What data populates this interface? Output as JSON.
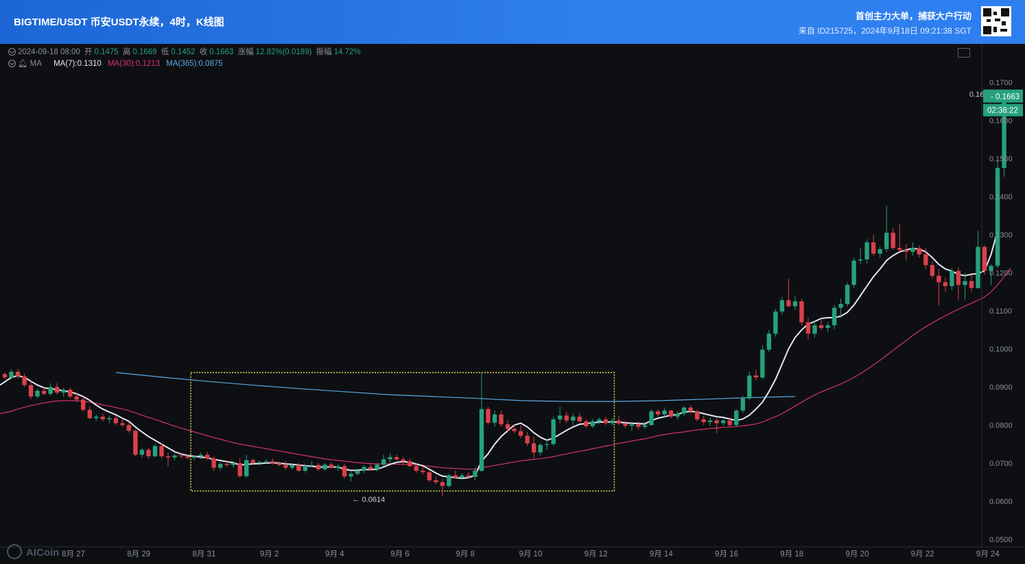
{
  "header": {
    "title": "BIGTIME/USDT 币安USDT永续，4时，K线图",
    "slogan": "首创主力大单，捕获大户行动",
    "source": "来自 ID215725，2024年9月18日 09:21:38 SGT"
  },
  "ohlc_info": {
    "date": "2024-09-18 08:00",
    "open_label": "开",
    "open": "0.1475",
    "high_label": "高",
    "high": "0.1669",
    "low_label": "低",
    "low": "0.1452",
    "close_label": "收",
    "close": "0.1663",
    "change_label": "涨幅",
    "change": "12.82%(0.0189)",
    "amp_label": "振幅",
    "amp": "14.72%"
  },
  "ma_info": {
    "label": "MA",
    "ma7": "MA(7):0.1310",
    "ma30": "MA(30):0.1213",
    "ma365": "MA(365):0.0875"
  },
  "price_tag": {
    "price": "0.1663",
    "countdown": "02:38:22"
  },
  "annotations": {
    "high": "0.1669 →",
    "low": "← 0.0614"
  },
  "logo": {
    "text": "AICoin"
  },
  "colors": {
    "up": "#26a17b",
    "down": "#d9414c",
    "ma7": "#e6e6f5",
    "ma30": "#d6336c",
    "ma365": "#5aa9e6",
    "box": "#e0d05a",
    "header": "#2f80ed"
  },
  "chart_data": {
    "type": "candlestick",
    "symbol": "BIGTIME/USDT",
    "interval": "4h",
    "y_ticks": [
      "0.1700",
      "0.1600",
      "0.1500",
      "0.1400",
      "0.1300",
      "0.1200",
      "0.1100",
      "0.1000",
      "0.0900",
      "0.0800",
      "0.0700",
      "0.0600",
      "0.0500"
    ],
    "ylim": [
      0.05,
      0.17
    ],
    "x_ticks": [
      "8月 27",
      "8月 29",
      "8月 31",
      "9月 2",
      "9月 4",
      "9月 6",
      "9月 8",
      "9月 10",
      "9月 12",
      "9月 14",
      "9月 16",
      "9月 18",
      "9月 20",
      "9月 22",
      "9月 24"
    ],
    "highlight_box": {
      "x_from_candle": 29,
      "x_to_candle": 93,
      "y_from": 0.0627,
      "y_to": 0.0938
    },
    "candles": [
      [
        0.0934,
        0.0938,
        0.0921,
        0.0925
      ],
      [
        0.0925,
        0.0945,
        0.092,
        0.094
      ],
      [
        0.094,
        0.0947,
        0.0922,
        0.0928
      ],
      [
        0.0928,
        0.0935,
        0.09,
        0.0905
      ],
      [
        0.0905,
        0.0915,
        0.0868,
        0.0875
      ],
      [
        0.0875,
        0.0895,
        0.087,
        0.089
      ],
      [
        0.089,
        0.09,
        0.0878,
        0.0882
      ],
      [
        0.0882,
        0.091,
        0.0878,
        0.09
      ],
      [
        0.09,
        0.091,
        0.088,
        0.0885
      ],
      [
        0.0885,
        0.0898,
        0.0875,
        0.0893
      ],
      [
        0.0893,
        0.09,
        0.087,
        0.0875
      ],
      [
        0.0875,
        0.0885,
        0.086,
        0.0867
      ],
      [
        0.0867,
        0.0875,
        0.0835,
        0.084
      ],
      [
        0.084,
        0.085,
        0.0815,
        0.0818
      ],
      [
        0.0818,
        0.0828,
        0.081,
        0.0822
      ],
      [
        0.0822,
        0.083,
        0.081,
        0.0815
      ],
      [
        0.0815,
        0.0825,
        0.0805,
        0.0818
      ],
      [
        0.0818,
        0.0825,
        0.08,
        0.0805
      ],
      [
        0.0805,
        0.0815,
        0.0795,
        0.08
      ],
      [
        0.08,
        0.0808,
        0.078,
        0.0785
      ],
      [
        0.0785,
        0.0788,
        0.0718,
        0.0722
      ],
      [
        0.0722,
        0.074,
        0.0715,
        0.0735
      ],
      [
        0.0735,
        0.074,
        0.0712,
        0.0718
      ],
      [
        0.0718,
        0.075,
        0.0715,
        0.0745
      ],
      [
        0.0745,
        0.0752,
        0.0712,
        0.0718
      ],
      [
        0.0718,
        0.0728,
        0.0692,
        0.0715
      ],
      [
        0.0715,
        0.0725,
        0.0708,
        0.072
      ],
      [
        0.072,
        0.0728,
        0.0712,
        0.0718
      ],
      [
        0.0718,
        0.0722,
        0.071,
        0.0714
      ],
      [
        0.0714,
        0.072,
        0.0708,
        0.0718
      ],
      [
        0.0718,
        0.0728,
        0.071,
        0.0722
      ],
      [
        0.0722,
        0.073,
        0.0708,
        0.0712
      ],
      [
        0.0712,
        0.0718,
        0.068,
        0.0688
      ],
      [
        0.0688,
        0.0702,
        0.0682,
        0.0698
      ],
      [
        0.0698,
        0.0708,
        0.069,
        0.0695
      ],
      [
        0.0695,
        0.0702,
        0.0688,
        0.07
      ],
      [
        0.07,
        0.0712,
        0.0662,
        0.0666
      ],
      [
        0.0666,
        0.0722,
        0.0662,
        0.0708
      ],
      [
        0.0708,
        0.0712,
        0.0696,
        0.07
      ],
      [
        0.07,
        0.0706,
        0.0694,
        0.0703
      ],
      [
        0.0703,
        0.071,
        0.0698,
        0.0705
      ],
      [
        0.0705,
        0.0712,
        0.0696,
        0.07
      ],
      [
        0.07,
        0.0705,
        0.0692,
        0.0695
      ],
      [
        0.0695,
        0.0705,
        0.0682,
        0.0688
      ],
      [
        0.0688,
        0.0698,
        0.0682,
        0.0695
      ],
      [
        0.0695,
        0.07,
        0.0678,
        0.068
      ],
      [
        0.068,
        0.0698,
        0.0675,
        0.0693
      ],
      [
        0.0693,
        0.0705,
        0.0688,
        0.0695
      ],
      [
        0.0695,
        0.07,
        0.068,
        0.0684
      ],
      [
        0.0684,
        0.07,
        0.068,
        0.0696
      ],
      [
        0.0696,
        0.0702,
        0.0685,
        0.0688
      ],
      [
        0.0688,
        0.0696,
        0.068,
        0.0692
      ],
      [
        0.0692,
        0.0698,
        0.066,
        0.0665
      ],
      [
        0.0665,
        0.068,
        0.0652,
        0.0672
      ],
      [
        0.0672,
        0.0686,
        0.0668,
        0.068
      ],
      [
        0.068,
        0.0694,
        0.0674,
        0.069
      ],
      [
        0.069,
        0.07,
        0.068,
        0.0684
      ],
      [
        0.0684,
        0.07,
        0.0678,
        0.0696
      ],
      [
        0.0696,
        0.0722,
        0.0692,
        0.071
      ],
      [
        0.071,
        0.0726,
        0.0698,
        0.0716
      ],
      [
        0.0716,
        0.0722,
        0.0706,
        0.071
      ],
      [
        0.071,
        0.0716,
        0.0695,
        0.0705
      ],
      [
        0.0705,
        0.0712,
        0.069,
        0.0692
      ],
      [
        0.0692,
        0.07,
        0.0675,
        0.068
      ],
      [
        0.068,
        0.069,
        0.067,
        0.0676
      ],
      [
        0.0676,
        0.0682,
        0.065,
        0.0655
      ],
      [
        0.0655,
        0.0665,
        0.0645,
        0.065
      ],
      [
        0.065,
        0.0658,
        0.0614,
        0.064
      ],
      [
        0.064,
        0.0672,
        0.0636,
        0.0668
      ],
      [
        0.0668,
        0.068,
        0.066,
        0.0662
      ],
      [
        0.0662,
        0.0674,
        0.0658,
        0.0668
      ],
      [
        0.0668,
        0.0676,
        0.066,
        0.0664
      ],
      [
        0.0664,
        0.0688,
        0.0655,
        0.068
      ],
      [
        0.068,
        0.0938,
        0.0676,
        0.0842
      ],
      [
        0.0842,
        0.0848,
        0.08,
        0.0806
      ],
      [
        0.0806,
        0.0838,
        0.0796,
        0.0828
      ],
      [
        0.0828,
        0.0838,
        0.0796,
        0.0802
      ],
      [
        0.0802,
        0.0812,
        0.078,
        0.079
      ],
      [
        0.079,
        0.0802,
        0.0778,
        0.0784
      ],
      [
        0.0784,
        0.08,
        0.0765,
        0.0772
      ],
      [
        0.0772,
        0.0782,
        0.0745,
        0.0752
      ],
      [
        0.0752,
        0.077,
        0.0712,
        0.0728
      ],
      [
        0.0728,
        0.0752,
        0.072,
        0.0748
      ],
      [
        0.0748,
        0.0765,
        0.0735,
        0.075
      ],
      [
        0.075,
        0.0822,
        0.0746,
        0.0815
      ],
      [
        0.0815,
        0.0848,
        0.0805,
        0.0825
      ],
      [
        0.0825,
        0.0835,
        0.0805,
        0.0812
      ],
      [
        0.0812,
        0.083,
        0.08,
        0.0822
      ],
      [
        0.0822,
        0.0832,
        0.0806,
        0.081
      ],
      [
        0.081,
        0.0816,
        0.0792,
        0.0797
      ],
      [
        0.0797,
        0.0816,
        0.0792,
        0.081
      ],
      [
        0.081,
        0.082,
        0.0803,
        0.0815
      ],
      [
        0.0815,
        0.0822,
        0.08,
        0.0805
      ],
      [
        0.0805,
        0.0818,
        0.0798,
        0.0812
      ],
      [
        0.0812,
        0.0825,
        0.08,
        0.0804
      ],
      [
        0.0804,
        0.0812,
        0.0792,
        0.0798
      ],
      [
        0.0798,
        0.0808,
        0.0785,
        0.0802
      ],
      [
        0.0802,
        0.081,
        0.0788,
        0.0795
      ],
      [
        0.0795,
        0.0808,
        0.079,
        0.08
      ],
      [
        0.08,
        0.0842,
        0.0798,
        0.0836
      ],
      [
        0.0836,
        0.0842,
        0.0822,
        0.0828
      ],
      [
        0.0828,
        0.0845,
        0.0818,
        0.0838
      ],
      [
        0.0838,
        0.084,
        0.0818,
        0.0822
      ],
      [
        0.0822,
        0.0836,
        0.0815,
        0.083
      ],
      [
        0.083,
        0.085,
        0.0824,
        0.0846
      ],
      [
        0.0846,
        0.0852,
        0.083,
        0.0836
      ],
      [
        0.0836,
        0.084,
        0.081,
        0.0815
      ],
      [
        0.0815,
        0.0825,
        0.08,
        0.0808
      ],
      [
        0.0808,
        0.082,
        0.0798,
        0.0812
      ],
      [
        0.0812,
        0.0818,
        0.0778,
        0.0805
      ],
      [
        0.0805,
        0.0816,
        0.0798,
        0.0812
      ],
      [
        0.0812,
        0.082,
        0.0795,
        0.08
      ],
      [
        0.08,
        0.0842,
        0.0796,
        0.0838
      ],
      [
        0.0838,
        0.0878,
        0.0832,
        0.087
      ],
      [
        0.087,
        0.094,
        0.0865,
        0.093
      ],
      [
        0.093,
        0.0945,
        0.0918,
        0.0925
      ],
      [
        0.0925,
        0.101,
        0.092,
        0.0998
      ],
      [
        0.0998,
        0.105,
        0.0992,
        0.104
      ],
      [
        0.104,
        0.1105,
        0.1032,
        0.1098
      ],
      [
        0.1098,
        0.1135,
        0.109,
        0.1128
      ],
      [
        0.1128,
        0.1185,
        0.111,
        0.1112
      ],
      [
        0.1112,
        0.114,
        0.1102,
        0.1125
      ],
      [
        0.1125,
        0.1132,
        0.1062,
        0.107
      ],
      [
        0.107,
        0.1082,
        0.1025,
        0.104
      ],
      [
        0.104,
        0.1075,
        0.103,
        0.1062
      ],
      [
        0.1062,
        0.1082,
        0.105,
        0.1055
      ],
      [
        0.1055,
        0.107,
        0.1045,
        0.1062
      ],
      [
        0.1062,
        0.1115,
        0.1052,
        0.1108
      ],
      [
        0.1108,
        0.1132,
        0.1082,
        0.1118
      ],
      [
        0.1118,
        0.1175,
        0.1112,
        0.1168
      ],
      [
        0.1168,
        0.124,
        0.116,
        0.1232
      ],
      [
        0.1232,
        0.1265,
        0.1222,
        0.1235
      ],
      [
        0.1235,
        0.1288,
        0.1225,
        0.128
      ],
      [
        0.128,
        0.13,
        0.1245,
        0.125
      ],
      [
        0.125,
        0.1268,
        0.124,
        0.1262
      ],
      [
        0.1262,
        0.1375,
        0.1255,
        0.1305
      ],
      [
        0.1305,
        0.1318,
        0.126,
        0.1265
      ],
      [
        0.1265,
        0.1328,
        0.1255,
        0.126
      ],
      [
        0.126,
        0.1275,
        0.1232,
        0.1255
      ],
      [
        0.1255,
        0.128,
        0.1245,
        0.1265
      ],
      [
        0.1265,
        0.1272,
        0.124,
        0.1248
      ],
      [
        0.1248,
        0.1265,
        0.121,
        0.122
      ],
      [
        0.122,
        0.123,
        0.1185,
        0.1192
      ],
      [
        0.1192,
        0.121,
        0.1115,
        0.1175
      ],
      [
        0.1175,
        0.1188,
        0.115,
        0.1165
      ],
      [
        0.1165,
        0.1212,
        0.1155,
        0.1205
      ],
      [
        0.1205,
        0.1215,
        0.113,
        0.1168
      ],
      [
        0.1168,
        0.12,
        0.113,
        0.1178
      ],
      [
        0.1178,
        0.1195,
        0.115,
        0.116
      ],
      [
        0.116,
        0.131,
        0.1158,
        0.1268
      ],
      [
        0.1268,
        0.1272,
        0.1195,
        0.1205
      ],
      [
        0.1205,
        0.1222,
        0.1168,
        0.1218
      ],
      [
        0.1218,
        0.1495,
        0.1212,
        0.1475
      ],
      [
        0.1475,
        0.1669,
        0.1452,
        0.1663
      ]
    ],
    "ma7": [
      0.0905,
      0.0925,
      0.093,
      0.0925,
      0.0915,
      0.0905,
      0.0898,
      0.0895,
      0.0893,
      0.089,
      0.0887,
      0.0882,
      0.0875,
      0.0865,
      0.0852,
      0.0842,
      0.0834,
      0.0827,
      0.0818,
      0.081,
      0.0795,
      0.0782,
      0.077,
      0.076,
      0.075,
      0.074,
      0.073,
      0.0724,
      0.072,
      0.0718,
      0.0716,
      0.0714,
      0.071,
      0.0707,
      0.0704,
      0.0701,
      0.0695,
      0.0697,
      0.0698,
      0.0699,
      0.07,
      0.0701,
      0.07,
      0.0698,
      0.0697,
      0.0695,
      0.0693,
      0.0692,
      0.069,
      0.069,
      0.069,
      0.069,
      0.0684,
      0.0681,
      0.0681,
      0.0683,
      0.0683,
      0.0684,
      0.069,
      0.0697,
      0.0702,
      0.0704,
      0.0702,
      0.0698,
      0.0693,
      0.0684,
      0.0674,
      0.0666,
      0.0664,
      0.0662,
      0.066,
      0.0662,
      0.0668,
      0.0705,
      0.0725,
      0.075,
      0.077,
      0.0785,
      0.08,
      0.0805,
      0.0795,
      0.078,
      0.0768,
      0.076,
      0.0766,
      0.0776,
      0.0786,
      0.0795,
      0.0802,
      0.0804,
      0.0806,
      0.0808,
      0.0808,
      0.0808,
      0.0808,
      0.0806,
      0.0805,
      0.0804,
      0.0803,
      0.0812,
      0.0818,
      0.0822,
      0.0826,
      0.0828,
      0.0834,
      0.0836,
      0.0834,
      0.083,
      0.0826,
      0.0822,
      0.082,
      0.0816,
      0.0812,
      0.0816,
      0.0826,
      0.0842,
      0.086,
      0.0888,
      0.092,
      0.096,
      0.1,
      0.103,
      0.105,
      0.1065,
      0.1072,
      0.108,
      0.1082,
      0.1082,
      0.1086,
      0.1096,
      0.1115,
      0.114,
      0.1165,
      0.119,
      0.121,
      0.1232,
      0.1245,
      0.1255,
      0.126,
      0.1264,
      0.1262,
      0.1255,
      0.124,
      0.1222,
      0.121,
      0.1204,
      0.1196,
      0.1192,
      0.1196,
      0.1198,
      0.1205,
      0.1248,
      0.131
    ],
    "ma30": [
      0.083,
      0.0836,
      0.0842,
      0.0847,
      0.0851,
      0.0855,
      0.0858,
      0.0861,
      0.0863,
      0.0864,
      0.0864,
      0.0864,
      0.0862,
      0.086,
      0.0857,
      0.0853,
      0.085,
      0.0846,
      0.0842,
      0.0838,
      0.0832,
      0.0826,
      0.082,
      0.0815,
      0.0809,
      0.0803,
      0.0797,
      0.0792,
      0.0787,
      0.0782,
      0.0777,
      0.0772,
      0.0767,
      0.0763,
      0.0758,
      0.0754,
      0.075,
      0.0747,
      0.0744,
      0.0741,
      0.0738,
      0.0735,
      0.0732,
      0.0729,
      0.0726,
      0.0723,
      0.072,
      0.0717,
      0.0714,
      0.0711,
      0.0709,
      0.0707,
      0.0705,
      0.0703,
      0.0701,
      0.07,
      0.0699,
      0.0698,
      0.0698,
      0.0698,
      0.0697,
      0.0697,
      0.0696,
      0.0695,
      0.0694,
      0.0692,
      0.069,
      0.0688,
      0.0687,
      0.0686,
      0.0685,
      0.0684,
      0.0684,
      0.0688,
      0.0691,
      0.0694,
      0.0697,
      0.07,
      0.0703,
      0.0706,
      0.0708,
      0.071,
      0.0712,
      0.0714,
      0.0717,
      0.0721,
      0.0724,
      0.0728,
      0.0731,
      0.0734,
      0.0738,
      0.0741,
      0.0745,
      0.0748,
      0.0752,
      0.0755,
      0.0758,
      0.0761,
      0.0764,
      0.0768,
      0.0772,
      0.0775,
      0.0778,
      0.078,
      0.0782,
      0.0785,
      0.0787,
      0.0789,
      0.0791,
      0.0792,
      0.0794,
      0.0795,
      0.0796,
      0.0798,
      0.08,
      0.0803,
      0.0808,
      0.0815,
      0.0822,
      0.083,
      0.084,
      0.085,
      0.086,
      0.087,
      0.0879,
      0.0887,
      0.0894,
      0.0901,
      0.0908,
      0.0916,
      0.0925,
      0.0935,
      0.0946,
      0.0958,
      0.097,
      0.0983,
      0.0996,
      0.1009,
      0.1022,
      0.1035,
      0.1047,
      0.1058,
      0.1068,
      0.1078,
      0.1087,
      0.1096,
      0.1104,
      0.1112,
      0.112,
      0.1128,
      0.1136,
      0.115,
      0.1168,
      0.119,
      0.1213
    ],
    "ma365": {
      "from_candle": 17,
      "values": [
        0.0938,
        0.0926,
        0.0915,
        0.0905,
        0.0896,
        0.0888,
        0.088,
        0.0875,
        0.087,
        0.0864,
        0.0862,
        0.0862,
        0.0864,
        0.0868,
        0.0872,
        0.0875
      ]
    }
  }
}
